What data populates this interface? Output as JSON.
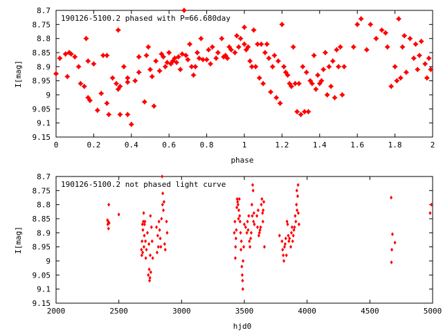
{
  "chart_data": [
    {
      "type": "scatter",
      "title": "190126-5100.2 phased with P=66.680day",
      "xlabel": "phase",
      "ylabel": "I[mag]",
      "xlim": [
        0,
        2
      ],
      "ylim": [
        8.7,
        9.15
      ],
      "y_inverted": true,
      "x_ticks": [
        "0",
        "0.2",
        "0.4",
        "0.6",
        "0.8",
        "1",
        "1.2",
        "1.4",
        "1.6",
        "1.8",
        "2"
      ],
      "x_tick_values": [
        0,
        0.2,
        0.4,
        0.6,
        0.8,
        1.0,
        1.2,
        1.4,
        1.6,
        1.8,
        2.0
      ],
      "y_ticks": [
        "8.7",
        "8.75",
        "8.8",
        "8.85",
        "8.9",
        "8.95",
        "9",
        "9.05",
        "9.1",
        "9.15"
      ],
      "y_tick_values": [
        8.7,
        8.75,
        8.8,
        8.85,
        8.9,
        8.95,
        9.0,
        9.05,
        9.1,
        9.15
      ],
      "grid": false,
      "marker_color": "#ff0000",
      "points": [
        [
          0.0,
          8.925
        ],
        [
          0.02,
          8.87
        ],
        [
          0.05,
          8.855
        ],
        [
          0.06,
          8.935
        ],
        [
          0.07,
          8.85
        ],
        [
          0.08,
          8.855
        ],
        [
          0.1,
          8.865
        ],
        [
          0.12,
          8.9
        ],
        [
          0.13,
          8.96
        ],
        [
          0.15,
          8.97
        ],
        [
          0.16,
          8.8
        ],
        [
          0.17,
          8.88
        ],
        [
          0.17,
          9.01
        ],
        [
          0.18,
          9.02
        ],
        [
          0.2,
          8.89
        ],
        [
          0.22,
          9.055
        ],
        [
          0.24,
          8.995
        ],
        [
          0.25,
          8.86
        ],
        [
          0.27,
          8.86
        ],
        [
          0.27,
          9.03
        ],
        [
          0.28,
          9.07
        ],
        [
          0.3,
          8.94
        ],
        [
          0.32,
          8.96
        ],
        [
          0.33,
          8.77
        ],
        [
          0.33,
          8.98
        ],
        [
          0.34,
          8.97
        ],
        [
          0.34,
          9.07
        ],
        [
          0.36,
          8.9
        ],
        [
          0.38,
          8.94
        ],
        [
          0.38,
          8.955
        ],
        [
          0.38,
          9.07
        ],
        [
          0.4,
          9.105
        ],
        [
          0.42,
          8.95
        ],
        [
          0.44,
          8.92
        ],
        [
          0.44,
          8.865
        ],
        [
          0.47,
          9.025
        ],
        [
          0.48,
          8.86
        ],
        [
          0.49,
          8.83
        ],
        [
          0.5,
          8.91
        ],
        [
          0.51,
          8.935
        ],
        [
          0.52,
          9.04
        ],
        [
          0.53,
          8.88
        ],
        [
          0.55,
          8.915
        ],
        [
          0.56,
          8.855
        ],
        [
          0.57,
          8.865
        ],
        [
          0.58,
          8.9
        ],
        [
          0.59,
          8.885
        ],
        [
          0.6,
          8.85
        ],
        [
          0.61,
          8.89
        ],
        [
          0.62,
          8.88
        ],
        [
          0.63,
          8.87
        ],
        [
          0.64,
          8.885
        ],
        [
          0.65,
          8.865
        ],
        [
          0.66,
          8.91
        ],
        [
          0.67,
          8.855
        ],
        [
          0.68,
          8.7
        ],
        [
          0.69,
          8.86
        ],
        [
          0.7,
          8.875
        ],
        [
          0.71,
          8.82
        ],
        [
          0.72,
          8.9
        ],
        [
          0.73,
          8.93
        ],
        [
          0.74,
          8.9
        ],
        [
          0.75,
          8.85
        ],
        [
          0.76,
          8.87
        ],
        [
          0.77,
          8.8
        ],
        [
          0.78,
          8.875
        ],
        [
          0.8,
          8.875
        ],
        [
          0.81,
          8.84
        ],
        [
          0.82,
          8.89
        ],
        [
          0.83,
          8.83
        ],
        [
          0.85,
          8.87
        ],
        [
          0.86,
          8.85
        ],
        [
          0.88,
          8.8
        ],
        [
          0.89,
          8.865
        ],
        [
          0.9,
          8.86
        ],
        [
          0.91,
          8.87
        ],
        [
          0.92,
          8.83
        ],
        [
          0.93,
          8.84
        ],
        [
          0.95,
          8.85
        ],
        [
          0.96,
          8.79
        ],
        [
          0.97,
          8.83
        ],
        [
          0.98,
          8.8
        ],
        [
          1.0,
          8.76
        ],
        [
          1.0,
          8.82
        ],
        [
          1.01,
          8.84
        ],
        [
          1.02,
          8.83
        ],
        [
          1.03,
          8.88
        ],
        [
          1.04,
          8.9
        ],
        [
          1.05,
          8.77
        ],
        [
          1.06,
          8.9
        ],
        [
          1.07,
          8.82
        ],
        [
          1.08,
          8.94
        ],
        [
          1.09,
          8.82
        ],
        [
          1.1,
          8.96
        ],
        [
          1.11,
          8.85
        ],
        [
          1.12,
          8.82
        ],
        [
          1.13,
          8.87
        ],
        [
          1.14,
          8.99
        ],
        [
          1.15,
          8.9
        ],
        [
          1.16,
          8.86
        ],
        [
          1.17,
          9.01
        ],
        [
          1.18,
          8.88
        ],
        [
          1.19,
          9.03
        ],
        [
          1.2,
          8.75
        ],
        [
          1.21,
          8.9
        ],
        [
          1.22,
          8.92
        ],
        [
          1.23,
          8.93
        ],
        [
          1.24,
          8.96
        ],
        [
          1.25,
          8.97
        ],
        [
          1.26,
          8.83
        ],
        [
          1.27,
          8.96
        ],
        [
          1.28,
          9.06
        ],
        [
          1.29,
          8.96
        ],
        [
          1.3,
          9.07
        ],
        [
          1.31,
          8.9
        ],
        [
          1.32,
          9.06
        ],
        [
          1.33,
          8.92
        ],
        [
          1.34,
          9.06
        ],
        [
          1.35,
          8.95
        ],
        [
          1.36,
          8.96
        ],
        [
          1.37,
          8.86
        ],
        [
          1.38,
          8.98
        ],
        [
          1.39,
          8.93
        ],
        [
          1.4,
          8.96
        ],
        [
          1.41,
          8.95
        ],
        [
          1.42,
          8.91
        ],
        [
          1.43,
          8.85
        ],
        [
          1.44,
          9.0
        ],
        [
          1.45,
          8.9
        ],
        [
          1.46,
          8.97
        ],
        [
          1.47,
          8.88
        ],
        [
          1.48,
          9.01
        ],
        [
          1.49,
          8.84
        ],
        [
          1.5,
          8.9
        ],
        [
          1.51,
          8.83
        ],
        [
          1.52,
          9.0
        ],
        [
          1.53,
          8.9
        ],
        [
          1.58,
          8.83
        ],
        [
          1.6,
          8.75
        ],
        [
          1.62,
          8.73
        ],
        [
          1.65,
          8.84
        ],
        [
          1.67,
          8.75
        ],
        [
          1.7,
          8.8
        ],
        [
          1.73,
          8.77
        ],
        [
          1.75,
          8.78
        ],
        [
          1.76,
          8.83
        ],
        [
          1.78,
          8.97
        ],
        [
          1.8,
          8.9
        ],
        [
          1.81,
          8.95
        ],
        [
          1.82,
          8.73
        ],
        [
          1.83,
          8.94
        ],
        [
          1.84,
          8.83
        ],
        [
          1.85,
          8.79
        ],
        [
          1.86,
          8.92
        ],
        [
          1.88,
          8.8
        ],
        [
          1.9,
          8.87
        ],
        [
          1.91,
          8.82
        ],
        [
          1.92,
          8.91
        ],
        [
          1.93,
          8.86
        ],
        [
          1.94,
          8.81
        ],
        [
          1.96,
          8.89
        ],
        [
          1.97,
          8.94
        ],
        [
          1.98,
          8.87
        ],
        [
          1.99,
          8.91
        ]
      ]
    },
    {
      "type": "scatter",
      "title": "190126-5100.2 not phased light curve",
      "xlabel": "hjd0",
      "ylabel": "I[mag]",
      "xlim": [
        2000,
        5000
      ],
      "ylim": [
        8.7,
        9.15
      ],
      "y_inverted": true,
      "x_ticks": [
        "2000",
        "2500",
        "3000",
        "3500",
        "4000",
        "4500",
        "5000"
      ],
      "x_tick_values": [
        2000,
        2500,
        3000,
        3500,
        4000,
        4500,
        5000
      ],
      "y_ticks": [
        "8.7",
        "8.75",
        "8.8",
        "8.85",
        "8.9",
        "8.95",
        "9",
        "9.05",
        "9.1",
        "9.15"
      ],
      "y_tick_values": [
        8.7,
        8.75,
        8.8,
        8.85,
        8.9,
        8.95,
        9.0,
        9.05,
        9.1,
        9.15
      ],
      "grid": false,
      "marker_color": "#ff0000",
      "points": [
        [
          2410,
          8.855
        ],
        [
          2412,
          8.87
        ],
        [
          2415,
          8.86
        ],
        [
          2418,
          8.885
        ],
        [
          2420,
          8.8
        ],
        [
          2423,
          8.865
        ],
        [
          2500,
          8.835
        ],
        [
          2680,
          8.96
        ],
        [
          2683,
          8.98
        ],
        [
          2685,
          8.93
        ],
        [
          2688,
          8.87
        ],
        [
          2690,
          8.97
        ],
        [
          2692,
          8.89
        ],
        [
          2695,
          8.86
        ],
        [
          2698,
          8.83
        ],
        [
          2700,
          8.95
        ],
        [
          2703,
          8.91
        ],
        [
          2705,
          8.87
        ],
        [
          2708,
          8.86
        ],
        [
          2712,
          8.93
        ],
        [
          2715,
          8.99
        ],
        [
          2720,
          8.96
        ],
        [
          2728,
          8.9
        ],
        [
          2735,
          9.05
        ],
        [
          2740,
          8.94
        ],
        [
          2742,
          9.03
        ],
        [
          2745,
          9.07
        ],
        [
          2748,
          9.06
        ],
        [
          2750,
          8.98
        ],
        [
          2752,
          8.84
        ],
        [
          2755,
          9.04
        ],
        [
          2760,
          8.88
        ],
        [
          2765,
          8.93
        ],
        [
          2770,
          8.99
        ],
        [
          2800,
          8.88
        ],
        [
          2805,
          8.97
        ],
        [
          2810,
          8.91
        ],
        [
          2815,
          8.95
        ],
        [
          2820,
          8.86
        ],
        [
          2825,
          8.89
        ],
        [
          2830,
          8.92
        ],
        [
          2835,
          8.95
        ],
        [
          2840,
          8.85
        ],
        [
          2845,
          8.7
        ],
        [
          2848,
          8.8
        ],
        [
          2850,
          8.76
        ],
        [
          2855,
          8.82
        ],
        [
          2860,
          8.79
        ],
        [
          2865,
          8.94
        ],
        [
          2870,
          8.96
        ],
        [
          2880,
          8.86
        ],
        [
          2885,
          8.9
        ],
        [
          3420,
          8.9
        ],
        [
          3425,
          8.86
        ],
        [
          3428,
          8.99
        ],
        [
          3430,
          8.95
        ],
        [
          3433,
          8.92
        ],
        [
          3436,
          8.89
        ],
        [
          3440,
          8.81
        ],
        [
          3443,
          8.78
        ],
        [
          3446,
          8.79
        ],
        [
          3450,
          8.8
        ],
        [
          3453,
          8.85
        ],
        [
          3456,
          8.82
        ],
        [
          3460,
          8.78
        ],
        [
          3463,
          8.84
        ],
        [
          3466,
          8.86
        ],
        [
          3470,
          8.9
        ],
        [
          3473,
          8.96
        ],
        [
          3476,
          8.93
        ],
        [
          3480,
          9.02
        ],
        [
          3483,
          9.05
        ],
        [
          3486,
          9.07
        ],
        [
          3488,
          9.1
        ],
        [
          3490,
          9.0
        ],
        [
          3495,
          8.95
        ],
        [
          3500,
          8.87
        ],
        [
          3510,
          8.88
        ],
        [
          3520,
          8.9
        ],
        [
          3525,
          8.86
        ],
        [
          3530,
          8.89
        ],
        [
          3535,
          8.84
        ],
        [
          3540,
          8.93
        ],
        [
          3545,
          8.95
        ],
        [
          3550,
          8.92
        ],
        [
          3555,
          8.9
        ],
        [
          3560,
          8.8
        ],
        [
          3563,
          8.84
        ],
        [
          3566,
          8.73
        ],
        [
          3570,
          8.75
        ],
        [
          3573,
          8.86
        ],
        [
          3576,
          8.83
        ],
        [
          3580,
          8.87
        ],
        [
          3600,
          8.84
        ],
        [
          3605,
          8.88
        ],
        [
          3610,
          8.82
        ],
        [
          3615,
          8.91
        ],
        [
          3620,
          8.9
        ],
        [
          3625,
          8.89
        ],
        [
          3630,
          8.88
        ],
        [
          3635,
          8.8
        ],
        [
          3640,
          8.78
        ],
        [
          3645,
          8.83
        ],
        [
          3648,
          8.86
        ],
        [
          3650,
          8.82
        ],
        [
          3655,
          8.79
        ],
        [
          3660,
          8.95
        ],
        [
          3780,
          8.91
        ],
        [
          3800,
          8.93
        ],
        [
          3805,
          8.96
        ],
        [
          3810,
          8.98
        ],
        [
          3815,
          9.0
        ],
        [
          3820,
          8.95
        ],
        [
          3825,
          8.94
        ],
        [
          3830,
          8.92
        ],
        [
          3835,
          8.98
        ],
        [
          3840,
          8.86
        ],
        [
          3845,
          8.87
        ],
        [
          3850,
          8.91
        ],
        [
          3855,
          8.93
        ],
        [
          3860,
          8.92
        ],
        [
          3870,
          8.95
        ],
        [
          3875,
          8.9
        ],
        [
          3880,
          8.88
        ],
        [
          3885,
          8.93
        ],
        [
          3890,
          8.91
        ],
        [
          3895,
          8.89
        ],
        [
          3900,
          8.88
        ],
        [
          3905,
          8.84
        ],
        [
          3910,
          8.86
        ],
        [
          3915,
          8.8
        ],
        [
          3918,
          8.75
        ],
        [
          3920,
          8.82
        ],
        [
          3925,
          8.77
        ],
        [
          3928,
          8.73
        ],
        [
          3930,
          8.83
        ],
        [
          3935,
          8.87
        ],
        [
          4670,
          8.775
        ],
        [
          4672,
          9.005
        ],
        [
          4675,
          8.96
        ],
        [
          4680,
          8.905
        ],
        [
          4700,
          8.935
        ],
        [
          4980,
          8.83
        ],
        [
          4990,
          8.8
        ]
      ]
    }
  ]
}
